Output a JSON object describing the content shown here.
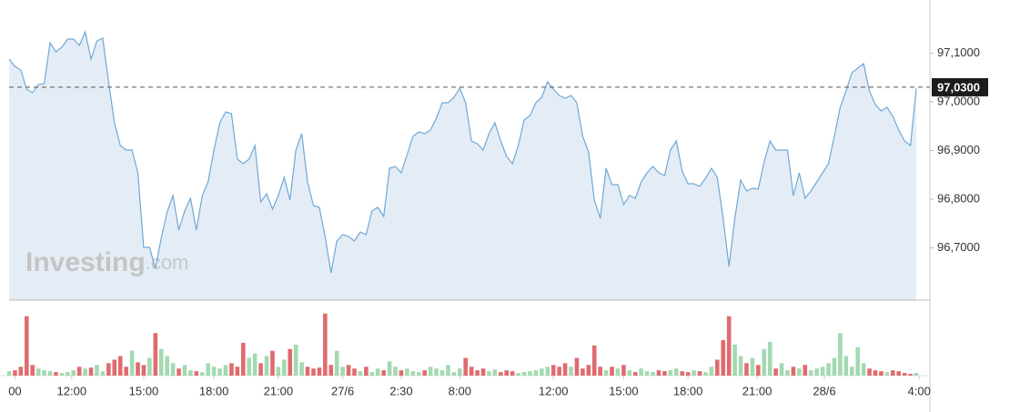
{
  "chart_data": {
    "type": "area",
    "color": "#6fa8d6",
    "fill_color": "#e4edf6",
    "values": [
      97.0879,
      97.0729,
      97.0654,
      97.0262,
      97.0187,
      97.0355,
      97.0374,
      97.1215,
      97.1028,
      97.1121,
      97.129,
      97.129,
      97.1159,
      97.1439,
      97.0879,
      97.1252,
      97.1308,
      97.0411,
      96.957,
      96.9103,
      96.9009,
      96.9009,
      96.8542,
      96.7009,
      96.7009,
      96.6579,
      96.7196,
      96.7738,
      96.8075,
      96.7364,
      96.7757,
      96.8019,
      96.7364,
      96.8075,
      96.8355,
      96.9009,
      96.957,
      96.9794,
      96.9757,
      96.8822,
      96.8729,
      96.8822,
      96.9103,
      96.7944,
      96.8112,
      96.7794,
      96.8075,
      96.8449,
      96.7981,
      96.9009,
      96.9346,
      96.8355,
      96.7869,
      96.7832,
      96.7234,
      96.6486,
      96.714,
      96.7271,
      96.7234,
      96.714,
      96.7327,
      96.7271,
      96.7757,
      96.7832,
      96.7645,
      96.8636,
      96.8673,
      96.8542,
      96.8916,
      96.929,
      96.9383,
      96.9346,
      96.9421,
      96.9664,
      96.9981,
      96.9981,
      97.0093,
      97.028,
      96.9981,
      96.9196,
      96.914,
      96.9009,
      96.9346,
      96.957,
      96.9196,
      96.8879,
      96.8729,
      96.9103,
      96.9626,
      96.972,
      96.9981,
      97.0093,
      97.0411,
      97.0262,
      97.0131,
      97.0075,
      97.0131,
      96.9981,
      96.929,
      96.8972,
      96.7981,
      96.7607,
      96.8636,
      96.8299,
      96.8299,
      96.7888,
      96.8075,
      96.8019,
      96.8355,
      96.8542,
      96.8673,
      96.8542,
      96.8486,
      96.9009,
      96.9196,
      96.8579,
      96.8318,
      96.8318,
      96.8262,
      96.843,
      96.8636,
      96.8449,
      96.7607,
      96.6617,
      96.7607,
      96.8393,
      96.8168,
      96.8224,
      96.8206,
      96.8766,
      96.9196,
      96.9009,
      96.9009,
      96.9009,
      96.8075,
      96.8542,
      96.8019,
      96.8168,
      96.8355,
      96.8542,
      96.8729,
      96.929,
      96.9888,
      97.0224,
      97.0598,
      97.0692,
      97.0785,
      97.0224,
      96.9944,
      96.9813,
      96.9888,
      96.9701,
      96.9421,
      96.9196,
      96.9103,
      97.028
    ],
    "xlim": [
      0,
      155
    ],
    "xticks": [
      {
        "value": 1,
        "label": "00"
      },
      {
        "value": 10.7,
        "label": "12:00"
      },
      {
        "value": 23,
        "label": "15:00"
      },
      {
        "value": 35,
        "label": "18:00"
      },
      {
        "value": 46,
        "label": "21:00"
      },
      {
        "value": 57,
        "label": "27/6"
      },
      {
        "value": 67,
        "label": "2:30"
      },
      {
        "value": 77,
        "label": "8:00"
      },
      {
        "value": 93,
        "label": "12:00"
      },
      {
        "value": 105,
        "label": "15:00"
      },
      {
        "value": 116,
        "label": "18:00"
      },
      {
        "value": 127.8,
        "label": "21:00"
      },
      {
        "value": 139.3,
        "label": "28/6"
      },
      {
        "value": 155.5,
        "label": "4:00"
      }
    ],
    "ylim": [
      96.5925,
      97.2093
    ],
    "yticks": [
      {
        "value": 96.7,
        "label": "96,7000"
      },
      {
        "value": 96.8,
        "label": "96,8000"
      },
      {
        "value": 96.9,
        "label": "96,9000"
      },
      {
        "value": 97.0,
        "label": "97,0000"
      },
      {
        "value": 97.1,
        "label": "97,1000"
      }
    ],
    "grid": false,
    "last_price": {
      "value": 97.03,
      "label": "97,0300"
    },
    "watermark": {
      "text": "Investing",
      "suffix": ".com"
    },
    "volume": {
      "up_color": "#a3d9b1",
      "down_color": "#e06b6f",
      "vlim": [
        0,
        80
      ],
      "values": [
        5,
        6,
        10,
        67,
        12,
        8,
        6,
        5,
        4,
        3,
        4,
        6,
        10,
        8,
        9,
        12,
        5,
        14,
        18,
        22,
        10,
        28,
        15,
        12,
        20,
        48,
        30,
        22,
        14,
        8,
        12,
        6,
        5,
        4,
        14,
        10,
        8,
        12,
        14,
        10,
        37,
        20,
        25,
        14,
        22,
        28,
        10,
        18,
        30,
        35,
        15,
        10,
        8,
        9,
        70,
        12,
        28,
        10,
        12,
        8,
        5,
        10,
        4,
        8,
        6,
        16,
        10,
        6,
        8,
        5,
        4,
        6,
        10,
        8,
        6,
        12,
        4,
        8,
        20,
        10,
        6,
        8,
        5,
        7,
        4,
        6,
        5,
        3,
        4,
        5,
        6,
        8,
        10,
        12,
        10,
        14,
        10,
        20,
        8,
        12,
        34,
        10,
        6,
        10,
        8,
        12,
        6,
        4,
        8,
        5,
        4,
        6,
        5,
        6,
        8,
        5,
        4,
        6,
        5,
        4,
        10,
        18,
        40,
        67,
        35,
        22,
        14,
        20,
        12,
        30,
        38,
        8,
        14,
        6,
        10,
        8,
        12,
        6,
        8,
        10,
        14,
        20,
        48,
        22,
        10,
        32,
        14,
        8,
        6,
        5,
        4,
        6,
        5,
        3,
        2,
        3
      ]
    }
  }
}
